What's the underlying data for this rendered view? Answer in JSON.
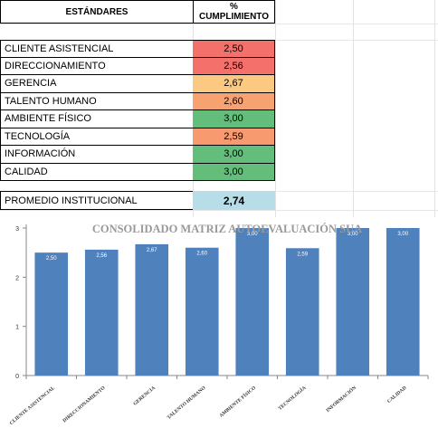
{
  "table": {
    "header_standards": "ESTÁNDARES",
    "header_pct_line1": "%",
    "header_pct_line2": "CUMPLIMIENTO",
    "rows": [
      {
        "label": "CLIENTE ASISTENCIAL",
        "value": "2,50",
        "color": "#f4706a"
      },
      {
        "label": "DIRECCIONAMIENTO",
        "value": "2,56",
        "color": "#f4706a"
      },
      {
        "label": "GERENCIA",
        "value": "2,67",
        "color": "#fbc982"
      },
      {
        "label": "TALENTO HUMANO",
        "value": "2,60",
        "color": "#f9a271"
      },
      {
        "label": "AMBIENTE FÍSICO",
        "value": "3,00",
        "color": "#63be7b"
      },
      {
        "label": "TECNOLOGÍA",
        "value": "2,59",
        "color": "#f89a6f"
      },
      {
        "label": "INFORMACIÓN",
        "value": "3,00",
        "color": "#63be7b"
      },
      {
        "label": "CALIDAD",
        "value": "3,00",
        "color": "#63be7b"
      }
    ],
    "promedio_label": "PROMEDIO INSTITUCIONAL",
    "promedio_value": "2,74",
    "promedio_color": "#b7dde8"
  },
  "chart_data": {
    "type": "bar",
    "title": "CONSOLIDADO MATRIZ AUTOEVALUACIÓN SUA",
    "categories": [
      "CLIENTE ASISTENCIAL",
      "DIRECCIONAMIENTO",
      "GERENCIA",
      "TALENTO HUMANO",
      "AMBIENTE FÍSICO",
      "TECNOLOGÍA",
      "INFORMACIÓN",
      "CALIDAD"
    ],
    "values": [
      2.5,
      2.56,
      2.67,
      2.6,
      3.0,
      2.59,
      3.0,
      3.0
    ],
    "data_labels": [
      "2,50",
      "2,56",
      "2,67",
      "2,60",
      "3,00",
      "2,59",
      "3,00",
      "3,00"
    ],
    "yticks": [
      "0",
      "1",
      "2",
      "3"
    ],
    "ylim": [
      0,
      3
    ],
    "bar_color": "#4f81bd",
    "grid": false
  }
}
